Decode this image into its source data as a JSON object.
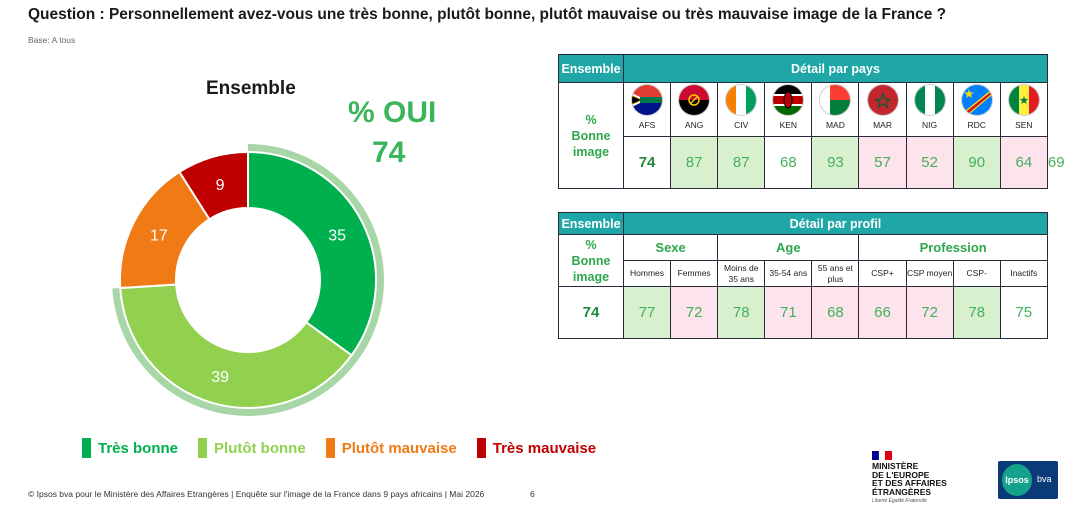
{
  "question": "Question : Personnellement avez-vous une très bonne, plutôt bonne, plutôt mauvaise ou très mauvaise image de la France ?",
  "base": "Base: A tous",
  "oui_label": "% OUI",
  "oui_value": "74",
  "chart_data": {
    "type": "pie",
    "title": "Ensemble",
    "categories": [
      "Très bonne",
      "Plutôt bonne",
      "Plutôt mauvaise",
      "Très mauvaise"
    ],
    "values": [
      35,
      39,
      17,
      9
    ],
    "colors": [
      "#00b04f",
      "#92d050",
      "#f07b16",
      "#c00000"
    ],
    "highlight_color": "#a9d6a6"
  },
  "legend": [
    {
      "label": "Très bonne",
      "color": "#00b04f"
    },
    {
      "label": "Plutôt bonne",
      "color": "#92d050"
    },
    {
      "label": "Plutôt mauvaise",
      "color": "#f07b16"
    },
    {
      "label": "Très mauvaise",
      "color": "#c00000"
    }
  ],
  "table_pays": {
    "ensemble_header": "Ensemble",
    "detail_header": "Détail par pays",
    "row_label": "% Bonne image",
    "ensemble_value": "74",
    "countries": [
      {
        "code": "AFS",
        "value": "87",
        "level": "hi",
        "flag": "south-africa-flag-icon"
      },
      {
        "code": "ANG",
        "value": "87",
        "level": "hi",
        "flag": "angola-flag-icon"
      },
      {
        "code": "CIV",
        "value": "68",
        "level": "ne",
        "flag": "cote-divoire-flag-icon"
      },
      {
        "code": "KEN",
        "value": "93",
        "level": "hi",
        "flag": "kenya-flag-icon"
      },
      {
        "code": "MAD",
        "value": "57",
        "level": "lo",
        "flag": "madagascar-flag-icon"
      },
      {
        "code": "MAR",
        "value": "52",
        "level": "lo",
        "flag": "morocco-flag-icon"
      },
      {
        "code": "NIG",
        "value": "90",
        "level": "hi",
        "flag": "nigeria-flag-icon"
      },
      {
        "code": "RDC",
        "value": "64",
        "level": "lo",
        "flag": "drc-flag-icon"
      },
      {
        "code": "SEN",
        "value": "69",
        "level": "lo",
        "flag": "senegal-flag-icon"
      }
    ]
  },
  "table_profil": {
    "ensemble_header": "Ensemble",
    "detail_header": "Détail par profil",
    "row_label": "% Bonne image",
    "ensemble_value": "74",
    "groups": [
      {
        "label": "Sexe",
        "span": 2
      },
      {
        "label": "Age",
        "span": 3
      },
      {
        "label": "Profession",
        "span": 4
      }
    ],
    "columns": [
      {
        "label": "Hommes",
        "value": "77",
        "level": "hi"
      },
      {
        "label": "Femmes",
        "value": "72",
        "level": "lo"
      },
      {
        "label": "Moins de 35 ans",
        "value": "78",
        "level": "hi"
      },
      {
        "label": "35-54 ans",
        "value": "71",
        "level": "lo"
      },
      {
        "label": "55 ans et plus",
        "value": "68",
        "level": "lo"
      },
      {
        "label": "CSP+",
        "value": "66",
        "level": "lo"
      },
      {
        "label": "CSP moyen",
        "value": "72",
        "level": "lo"
      },
      {
        "label": "CSP-",
        "value": "78",
        "level": "hi"
      },
      {
        "label": "Inactifs",
        "value": "75",
        "level": "ne"
      }
    ]
  },
  "footer": "© Ipsos bva pour le Ministère des Affaires Etrangères | Enquête sur l'image de la France dans 9 pays africains | Mai 2026",
  "page_number": "6",
  "ministry_logo": {
    "text": "MINISTÈRE DE L'EUROPE ET DES AFFAIRES ÉTRANGÈRES",
    "devise": "Liberté Égalité Fraternité"
  },
  "ipsos_logo": {
    "name": "Ipsos",
    "suffix": "bva"
  }
}
